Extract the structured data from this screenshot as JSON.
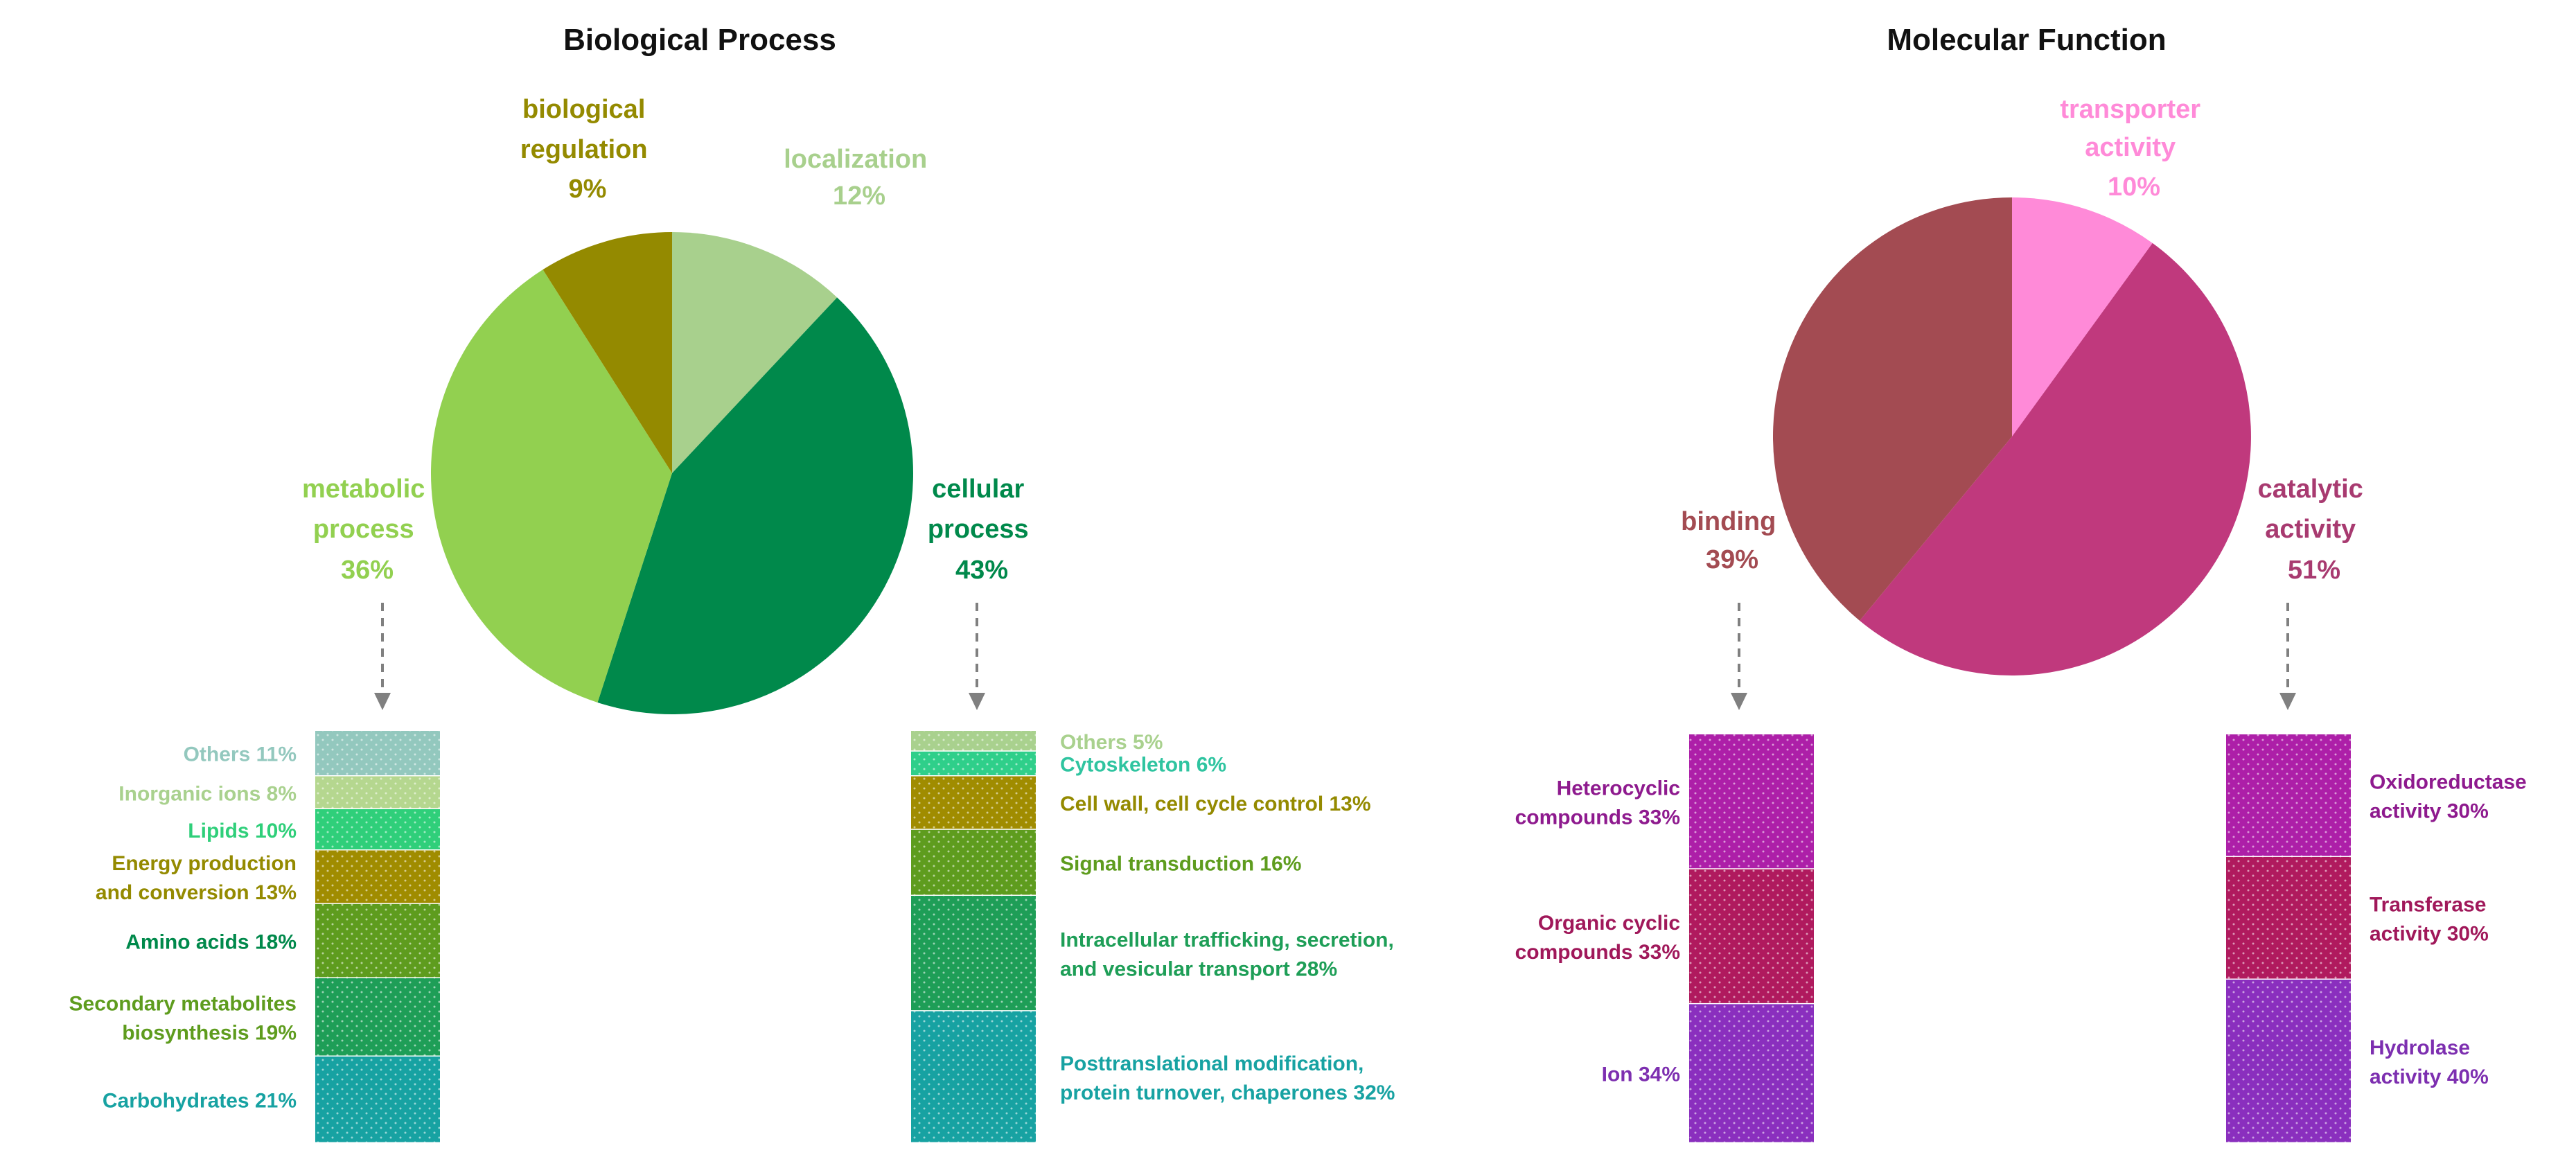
{
  "chart_data": [
    {
      "type": "pie",
      "title": "Biological Process",
      "slices": [
        {
          "label": [
            "localization"
          ],
          "pct": "12%",
          "value": 12,
          "color": "#a8d08d"
        },
        {
          "label": [
            "cellular",
            "process"
          ],
          "pct": "43%",
          "value": 43,
          "color": "#00894b"
        },
        {
          "label": [
            "metabolic",
            "process"
          ],
          "pct": "36%",
          "value": 36,
          "color": "#92d050"
        },
        {
          "label": [
            "biological",
            "regulation"
          ],
          "pct": "9%",
          "value": 9,
          "color": "#948a00"
        }
      ],
      "breakdowns": [
        {
          "type": "stacked-bar",
          "source": "metabolic process",
          "segments": [
            {
              "label": [
                "Others 11%"
              ],
              "value": 11,
              "color": "#93c8be",
              "text_color": "#93c8be"
            },
            {
              "label": [
                "Inorganic ions 8%"
              ],
              "value": 8,
              "color": "#b5d78f",
              "text_color": "#a9d18e"
            },
            {
              "label": [
                "Lipids 10%"
              ],
              "value": 10,
              "color": "#2fcf7a",
              "text_color": "#2fcf7a"
            },
            {
              "label": [
                "Energy production",
                "and conversion 13%"
              ],
              "value": 13,
              "color": "#a08c00",
              "text_color": "#948a00"
            },
            {
              "label": [
                "Amino acids 18%"
              ],
              "value": 18,
              "color": "#5e9c1e",
              "text_color": "#00894b"
            },
            {
              "label": [
                "Secondary metabolites",
                "biosynthesis 19%"
              ],
              "value": 19,
              "color": "#1e9e57",
              "text_color": "#5e9c1e"
            },
            {
              "label": [
                "Carbohydrates 21%"
              ],
              "value": 21,
              "color": "#17a2a2",
              "text_color": "#17a2a2"
            }
          ]
        },
        {
          "type": "stacked-bar",
          "source": "cellular process",
          "segments": [
            {
              "label": [
                "Others 5%"
              ],
              "value": 5,
              "color": "#a9d18e",
              "text_color": "#a9d18e"
            },
            {
              "label": [
                "Cytoskeleton 6%"
              ],
              "value": 6,
              "color": "#2fcf8a",
              "text_color": "#2fc4a0"
            },
            {
              "label": [
                "Cell wall, cell cycle control 13%"
              ],
              "value": 13,
              "color": "#a08c00",
              "text_color": "#948a00"
            },
            {
              "label": [
                "Signal transduction 16%"
              ],
              "value": 16,
              "color": "#5e9c1e",
              "text_color": "#5e9c1e"
            },
            {
              "label": [
                "Intracellular trafficking, secretion,",
                "and vesicular transport 28%"
              ],
              "value": 28,
              "color": "#1e9e57",
              "text_color": "#1e9e57"
            },
            {
              "label": [
                "Posttranslational modification,",
                "protein turnover, chaperones 32%"
              ],
              "value": 32,
              "color": "#17a2a2",
              "text_color": "#17a2a2"
            }
          ]
        }
      ]
    },
    {
      "type": "pie",
      "title": "Molecular Function",
      "slices": [
        {
          "label": [
            "transporter",
            "activity"
          ],
          "pct": "10%",
          "value": 10,
          "color": "#ff8ad8"
        },
        {
          "label": [
            "catalytic",
            "activity"
          ],
          "pct": "51%",
          "value": 51,
          "color": "#c0397d"
        },
        {
          "label": [
            "binding"
          ],
          "pct": "39%",
          "value": 39,
          "color": "#a34b52"
        }
      ],
      "breakdowns": [
        {
          "type": "stacked-bar",
          "source": "binding",
          "segments": [
            {
              "label": [
                "Heterocyclic",
                "compounds 33%"
              ],
              "value": 33,
              "color": "#ad1fa8",
              "text_color": "#8e1a8e"
            },
            {
              "label": [
                "Organic cyclic",
                "compounds 33%"
              ],
              "value": 33,
              "color": "#b01a5e",
              "text_color": "#a0185a"
            },
            {
              "label": [
                "Ion 34%"
              ],
              "value": 34,
              "color": "#8a2fbe",
              "text_color": "#7d2fb0"
            }
          ]
        },
        {
          "type": "stacked-bar",
          "source": "catalytic activity",
          "segments": [
            {
              "label": [
                "Oxidoreductase",
                "activity 30%"
              ],
              "value": 30,
              "color": "#ad1fa8",
              "text_color": "#8e1a8e"
            },
            {
              "label": [
                "Transferase",
                "activity 30%"
              ],
              "value": 30,
              "color": "#b01a5e",
              "text_color": "#a0185a"
            },
            {
              "label": [
                "Hydrolase",
                "activity 40%"
              ],
              "value": 40,
              "color": "#8a2fbe",
              "text_color": "#7d2fb0"
            }
          ]
        }
      ]
    }
  ]
}
